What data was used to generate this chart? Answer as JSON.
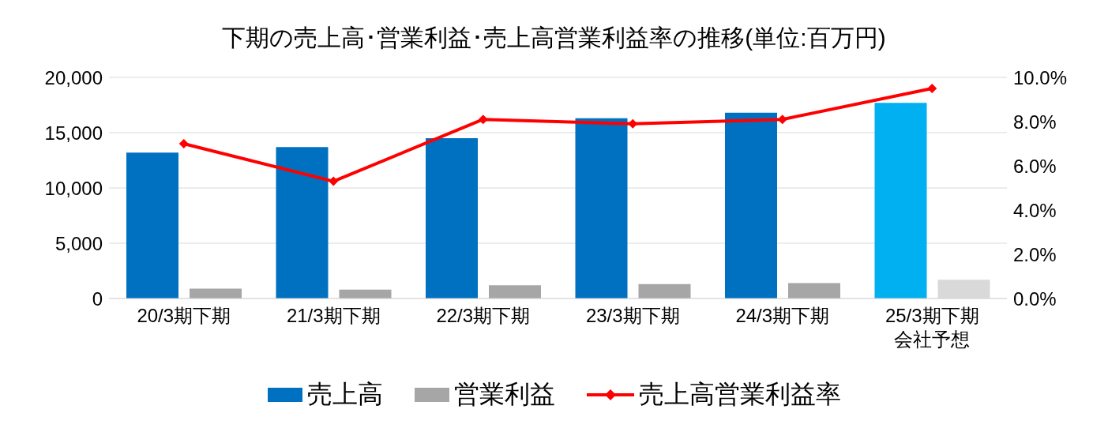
{
  "chart_data": {
    "type": "bar",
    "title": "下期の売上高･営業利益･売上高営業利益率の推移(単位:百万円)",
    "categories": [
      "20/3期下期",
      "21/3期下期",
      "22/3期下期",
      "23/3期下期",
      "24/3期下期",
      "25/3期下期会社予想"
    ],
    "series": [
      {
        "name": "売上高",
        "color": "#0070c0",
        "colors": [
          "#0070c0",
          "#0070c0",
          "#0070c0",
          "#0070c0",
          "#0070c0",
          "#00b0f0"
        ],
        "values": [
          13200,
          13700,
          14500,
          16300,
          16800,
          17700
        ]
      },
      {
        "name": "営業利益",
        "color": "#a6a6a6",
        "colors": [
          "#a6a6a6",
          "#a6a6a6",
          "#a6a6a6",
          "#a6a6a6",
          "#a6a6a6",
          "#d9d9d9"
        ],
        "values": [
          900,
          800,
          1200,
          1300,
          1400,
          1700
        ]
      },
      {
        "name": "売上高営業利益率",
        "type": "line",
        "axis": "y2",
        "color": "#ff0000",
        "values": [
          7.0,
          5.3,
          8.1,
          7.9,
          8.1,
          9.5
        ]
      }
    ],
    "ylim": [
      0,
      20000
    ],
    "yticks": [
      {
        "value": 0,
        "label": "0"
      },
      {
        "value": 5000,
        "label": "5,000"
      },
      {
        "value": 10000,
        "label": "10,000"
      },
      {
        "value": 15000,
        "label": "15,000"
      },
      {
        "value": 20000,
        "label": "20,000"
      }
    ],
    "y2lim": [
      0,
      10
    ],
    "y2ticks": [
      {
        "value": 0,
        "label": "0.0%"
      },
      {
        "value": 2,
        "label": "2.0%"
      },
      {
        "value": 4,
        "label": "4.0%"
      },
      {
        "value": 6,
        "label": "6.0%"
      },
      {
        "value": 8,
        "label": "8.0%"
      },
      {
        "value": 10,
        "label": "10.0%"
      }
    ],
    "grid": "y",
    "legend": "bottom",
    "marker": "diamond",
    "line_style": "solid"
  }
}
